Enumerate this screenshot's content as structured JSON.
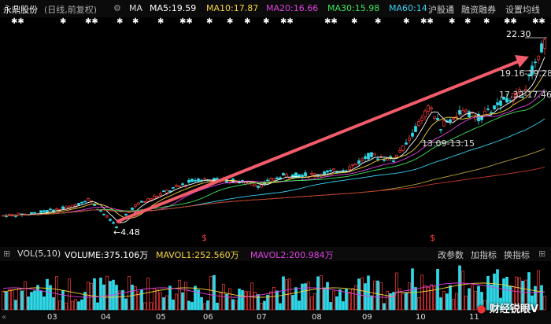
{
  "header": {
    "stock_name": "永鼎股份",
    "mode": "(日线,前复权)",
    "ma_label": "MA",
    "ma5": "MA5:19.59",
    "ma10": "MA10:17.87",
    "ma20": "MA20:16.66",
    "ma30": "MA30:15.98",
    "ma60": "MA60:14",
    "tabs": [
      "沪股通",
      "融资融券",
      "设置均线"
    ],
    "colors": {
      "ma5": "#ffffff",
      "ma10": "#f5d23c",
      "ma20": "#e040e0",
      "ma30": "#3ee35a",
      "ma60": "#3ad0f0"
    }
  },
  "annotations": {
    "high": "22.30",
    "low": "4.48",
    "range1": "19.16-19.28",
    "range2": "17.32-17.46",
    "range3": "13.09-13.15",
    "marker": "$"
  },
  "volume": {
    "label": "VOL(5,10)",
    "value": "VOLUME:375.106万",
    "mavol1": "MAVOL1:252.560万",
    "mavol2": "MAVOL2:200.984万",
    "buttons": [
      "改参数",
      "加指标",
      "换指标"
    ]
  },
  "axis": {
    "months": [
      "03",
      "04",
      "05",
      "06",
      "07",
      "08",
      "09",
      "10",
      "11"
    ]
  },
  "watermark": "财经锐眼V",
  "chart_data": {
    "type": "candlestick",
    "price_high": 22.3,
    "price_low": 4.48,
    "months": [
      "03",
      "04",
      "05",
      "06",
      "07",
      "08",
      "09",
      "10",
      "11"
    ]
  }
}
